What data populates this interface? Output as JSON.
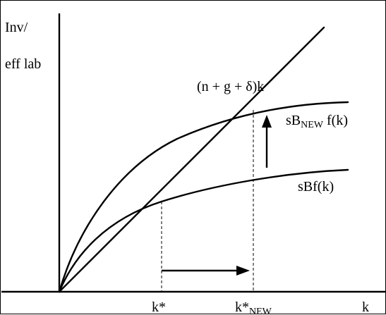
{
  "diagram": {
    "y_axis_label_line1": "Inv/",
    "y_axis_label_line2": "eff lab",
    "x_axis_label": "k",
    "line_label": "(n + g + δ)k",
    "new_curve_label_prefix": "sB",
    "new_curve_label_subscript": "NEW",
    "new_curve_label_suffix": " f(k)",
    "old_curve_label": "sBf(k)",
    "k_star_label": "k*",
    "k_star_new_label_base": "k*",
    "k_star_new_label_subscript": "NEW"
  }
}
